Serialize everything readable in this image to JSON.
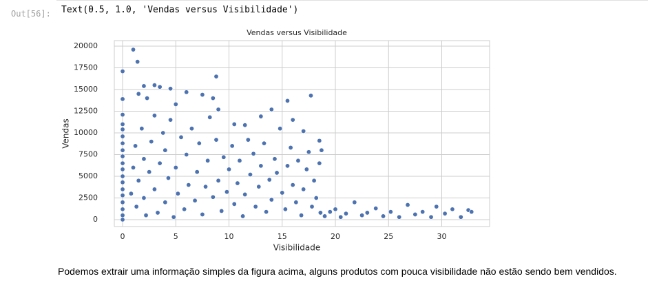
{
  "output_prompt": "Out[56]:",
  "output_text": "Text(0.5, 1.0, 'Vendas versus Visibilidade')",
  "chart_data": {
    "type": "scatter",
    "title": "Vendas versus Visibilidade",
    "x_label": "Visibilidade",
    "y_label": "Vendas",
    "color": "#4c72b0",
    "grid": true,
    "xlim": [
      -0.78,
      34.5
    ],
    "ylim": [
      -794,
      20635
    ],
    "xticks": [
      0,
      5,
      10,
      15,
      20,
      25,
      30
    ],
    "yticks": [
      0,
      2500,
      5000,
      7500,
      10000,
      12500,
      15000,
      17500,
      20000
    ],
    "x": [
      0,
      0,
      0,
      1,
      1.4,
      1.5,
      2,
      2.3,
      3,
      3.5,
      4.5,
      5,
      6,
      7.5,
      8.5,
      8.8,
      9,
      10.5,
      11.5,
      13,
      14,
      15.5,
      16,
      17.7,
      17,
      18.5,
      0,
      0,
      0,
      0,
      0,
      0,
      0,
      0,
      0,
      0,
      0,
      0,
      0,
      0,
      0,
      0,
      0.8,
      1,
      1.2,
      1.3,
      1.5,
      1.8,
      2,
      2,
      2.2,
      2.5,
      2.7,
      3,
      3,
      3.3,
      3.5,
      3.8,
      4,
      4,
      4.3,
      4.5,
      4.8,
      5,
      5.2,
      5.5,
      5.8,
      6,
      6.2,
      6.5,
      6.8,
      7,
      7.2,
      7.5,
      7.8,
      8,
      8.2,
      8.5,
      8.8,
      9,
      9.3,
      9.5,
      9.8,
      10,
      10.3,
      10.5,
      10.8,
      11,
      11.3,
      11.5,
      11.8,
      12,
      12.3,
      12.5,
      12.8,
      13,
      13.3,
      13.5,
      13.8,
      14,
      14.3,
      14.5,
      14.8,
      15,
      15.3,
      15.5,
      15.8,
      16,
      16.3,
      16.5,
      16.8,
      17,
      17.3,
      17.5,
      17.8,
      18,
      18.2,
      18.5,
      18.6,
      18.7,
      19,
      19.5,
      20,
      20.5,
      21,
      21.8,
      22.5,
      23,
      23.8,
      24.5,
      25.2,
      26,
      26.8,
      27.5,
      28.2,
      29,
      29.5,
      30.3,
      31,
      31.8,
      32.5,
      32.8
    ],
    "y": [
      17100,
      13900,
      12100,
      19600,
      18200,
      14500,
      15400,
      14000,
      15500,
      15300,
      15100,
      13300,
      14700,
      14400,
      14000,
      16500,
      12700,
      11000,
      10900,
      11900,
      12700,
      13700,
      11500,
      14300,
      10200,
      9100,
      0,
      500,
      1200,
      2000,
      2800,
      3500,
      4300,
      5000,
      5800,
      6500,
      7300,
      8000,
      8800,
      9600,
      10400,
      11000,
      3000,
      6000,
      8500,
      1500,
      4500,
      10500,
      2500,
      7000,
      500,
      5500,
      9000,
      3500,
      12000,
      800,
      6500,
      10000,
      2000,
      8000,
      4800,
      11500,
      300,
      6000,
      3000,
      9500,
      1200,
      7500,
      4000,
      10500,
      2200,
      5500,
      8800,
      600,
      3800,
      6800,
      11800,
      2600,
      9200,
      4500,
      1000,
      7200,
      3200,
      5800,
      8500,
      1800,
      4200,
      6800,
      400,
      2900,
      9200,
      5200,
      7600,
      1500,
      3800,
      6200,
      8800,
      900,
      4600,
      2300,
      7000,
      5400,
      10500,
      3100,
      1200,
      6200,
      8300,
      4000,
      2000,
      6800,
      500,
      3500,
      5800,
      7800,
      1500,
      4500,
      2500,
      6500,
      800,
      8000,
      400,
      900,
      1200,
      300,
      700,
      2000,
      500,
      800,
      1300,
      400,
      900,
      300,
      1700,
      600,
      900,
      300,
      1500,
      700,
      1200,
      300,
      1100,
      900
    ]
  },
  "paragraph": "Podemos extrair uma informação simples da figura acima, alguns produtos com pouca visibilidade não estão sendo bem vendidos."
}
